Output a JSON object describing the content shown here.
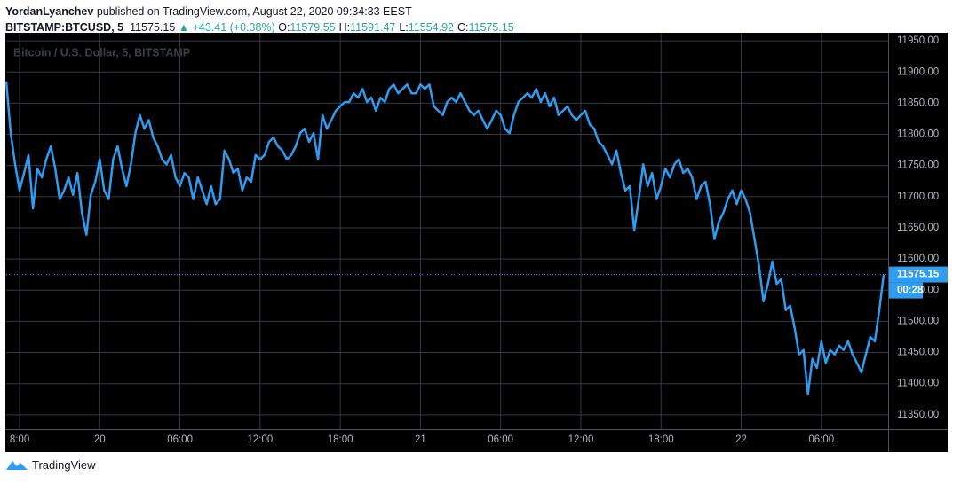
{
  "header": {
    "author": "YordanLyanchev",
    "published": "published on TradingView.com, August 22, 2020 09:34:33 EEST",
    "symbol": "BITSTAMP:BTCUSD, 5",
    "price": 11575.15,
    "change": "▲ +43.41 (+0.38%)",
    "ohlc": [
      {
        "label": "O:",
        "value": 11579.55
      },
      {
        "label": "H:",
        "value": 11591.47
      },
      {
        "label": "L:",
        "value": 11554.92
      },
      {
        "label": "C:",
        "value": 11575.15
      }
    ]
  },
  "footer": {
    "brand": "TradingView"
  },
  "chart_data": {
    "type": "line",
    "watermark": "Bitcoin / U.S. Dollar, 5, BITSTAMP",
    "color": "#2e9cf0",
    "grid": true,
    "last_price": 11575.15,
    "countdown": "00:28",
    "xlim": [
      -420,
      3540
    ],
    "ylim": [
      11327,
      11963
    ],
    "xticks": [
      {
        "value": -360,
        "label": "8:00"
      },
      {
        "value": 0,
        "label": "20"
      },
      {
        "value": 360,
        "label": "06:00"
      },
      {
        "value": 720,
        "label": "12:00"
      },
      {
        "value": 1080,
        "label": "18:00"
      },
      {
        "value": 1440,
        "label": "21"
      },
      {
        "value": 1800,
        "label": "06:00"
      },
      {
        "value": 2160,
        "label": "12:00"
      },
      {
        "value": 2520,
        "label": "18:00"
      },
      {
        "value": 2880,
        "label": "22"
      },
      {
        "value": 3240,
        "label": "06:00"
      }
    ],
    "yticks": [
      {
        "value": 11350,
        "label": "11350.00"
      },
      {
        "value": 11400,
        "label": "11400.00"
      },
      {
        "value": 11450,
        "label": "11450.00"
      },
      {
        "value": 11500,
        "label": "11500.00"
      },
      {
        "value": 11550,
        "label": "11550.00"
      },
      {
        "value": 11600,
        "label": "11600.00"
      },
      {
        "value": 11650,
        "label": "11650.00"
      },
      {
        "value": 11700,
        "label": "11700.00"
      },
      {
        "value": 11750,
        "label": "11750.00"
      },
      {
        "value": 11800,
        "label": "11800.00"
      },
      {
        "value": 11850,
        "label": "11850.00"
      },
      {
        "value": 11900,
        "label": "11900.00"
      },
      {
        "value": 11950,
        "label": "11950.00"
      }
    ],
    "x": [
      -420,
      -400,
      -380,
      -360,
      -340,
      -320,
      -300,
      -280,
      -260,
      -240,
      -220,
      -200,
      -180,
      -160,
      -140,
      -120,
      -100,
      -80,
      -60,
      -40,
      -20,
      0,
      20,
      40,
      60,
      80,
      100,
      120,
      140,
      160,
      180,
      200,
      220,
      240,
      260,
      280,
      300,
      320,
      340,
      360,
      380,
      400,
      420,
      440,
      460,
      480,
      500,
      520,
      540,
      560,
      580,
      600,
      620,
      640,
      660,
      680,
      700,
      720,
      740,
      760,
      780,
      800,
      820,
      840,
      860,
      880,
      900,
      920,
      940,
      960,
      980,
      1000,
      1020,
      1040,
      1060,
      1080,
      1100,
      1120,
      1140,
      1160,
      1180,
      1200,
      1220,
      1240,
      1260,
      1280,
      1300,
      1320,
      1340,
      1360,
      1380,
      1400,
      1420,
      1440,
      1460,
      1480,
      1500,
      1520,
      1540,
      1560,
      1580,
      1600,
      1620,
      1640,
      1660,
      1680,
      1700,
      1720,
      1740,
      1760,
      1780,
      1800,
      1820,
      1840,
      1860,
      1880,
      1900,
      1920,
      1940,
      1960,
      1980,
      2000,
      2020,
      2040,
      2060,
      2080,
      2100,
      2120,
      2140,
      2160,
      2180,
      2200,
      2220,
      2240,
      2260,
      2280,
      2300,
      2320,
      2340,
      2360,
      2380,
      2400,
      2420,
      2440,
      2460,
      2480,
      2500,
      2520,
      2540,
      2560,
      2580,
      2600,
      2620,
      2640,
      2660,
      2680,
      2700,
      2720,
      2740,
      2760,
      2780,
      2800,
      2820,
      2840,
      2860,
      2880,
      2900,
      2920,
      2940,
      2960,
      2980,
      3000,
      3020,
      3040,
      3060,
      3080,
      3100,
      3120,
      3140,
      3160,
      3180,
      3200,
      3220,
      3240,
      3260,
      3280,
      3300,
      3320,
      3340,
      3360,
      3380,
      3400,
      3420,
      3440,
      3460,
      3480,
      3500,
      3520
    ],
    "values": [
      11885,
      11802,
      11752,
      11710,
      11738,
      11767,
      11681,
      11745,
      11731,
      11760,
      11781,
      11745,
      11696,
      11710,
      11731,
      11703,
      11738,
      11674,
      11639,
      11703,
      11724,
      11760,
      11710,
      11696,
      11760,
      11781,
      11745,
      11717,
      11752,
      11802,
      11831,
      11809,
      11823,
      11795,
      11781,
      11760,
      11752,
      11767,
      11731,
      11717,
      11738,
      11731,
      11696,
      11731,
      11710,
      11688,
      11717,
      11688,
      11696,
      11774,
      11760,
      11738,
      11745,
      11710,
      11731,
      11724,
      11767,
      11760,
      11767,
      11788,
      11795,
      11781,
      11774,
      11760,
      11767,
      11781,
      11802,
      11809,
      11788,
      11802,
      11760,
      11831,
      11809,
      11823,
      11838,
      11845,
      11852,
      11852,
      11866,
      11859,
      11873,
      11852,
      11859,
      11838,
      11859,
      11852,
      11873,
      11880,
      11866,
      11873,
      11880,
      11866,
      11866,
      11880,
      11873,
      11880,
      11845,
      11838,
      11831,
      11852,
      11859,
      11852,
      11866,
      11852,
      11838,
      11831,
      11838,
      11823,
      11809,
      11823,
      11838,
      11831,
      11809,
      11802,
      11831,
      11852,
      11859,
      11866,
      11859,
      11873,
      11852,
      11866,
      11845,
      11859,
      11831,
      11838,
      11845,
      11831,
      11823,
      11831,
      11838,
      11816,
      11809,
      11788,
      11781,
      11767,
      11752,
      11774,
      11738,
      11710,
      11717,
      11646,
      11696,
      11752,
      11717,
      11738,
      11696,
      11717,
      11745,
      11731,
      11752,
      11760,
      11738,
      11745,
      11731,
      11696,
      11717,
      11724,
      11688,
      11632,
      11660,
      11674,
      11696,
      11710,
      11688,
      11710,
      11696,
      11674,
      11632,
      11589,
      11532,
      11560,
      11596,
      11560,
      11568,
      11518,
      11525,
      11489,
      11447,
      11454,
      11383,
      11440,
      11425,
      11468,
      11433,
      11454,
      11447,
      11461,
      11454,
      11468,
      11447,
      11433,
      11418,
      11447,
      11475,
      11468,
      11518,
      11575
    ]
  }
}
